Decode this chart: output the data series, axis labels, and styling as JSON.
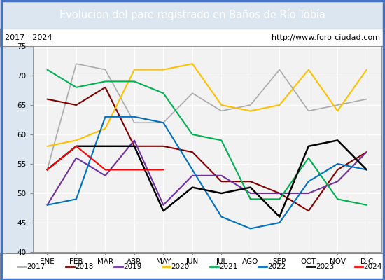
{
  "title": "Evolucion del paro registrado en Baños de Río Tobía",
  "title_bg": "#4472c4",
  "subtitle_left": "2017 - 2024",
  "subtitle_right": "http://www.foro-ciudad.com",
  "months": [
    "ENE",
    "FEB",
    "MAR",
    "ABR",
    "MAY",
    "JUN",
    "JUL",
    "AGO",
    "SEP",
    "OCT",
    "NOV",
    "DIC"
  ],
  "ylim": [
    40,
    75
  ],
  "yticks": [
    40,
    45,
    50,
    55,
    60,
    65,
    70,
    75
  ],
  "series": {
    "2017": {
      "color": "#aaaaaa",
      "linewidth": 1.2,
      "data": [
        54,
        72,
        71,
        62,
        62,
        67,
        64,
        65,
        71,
        64,
        65,
        66
      ]
    },
    "2018": {
      "color": "#800000",
      "linewidth": 1.5,
      "data": [
        66,
        65,
        68,
        58,
        58,
        57,
        52,
        52,
        50,
        47,
        54,
        57
      ]
    },
    "2019": {
      "color": "#7030a0",
      "linewidth": 1.5,
      "data": [
        48,
        56,
        53,
        59,
        48,
        53,
        53,
        50,
        50,
        50,
        52,
        57
      ]
    },
    "2020": {
      "color": "#ffc000",
      "linewidth": 1.5,
      "data": [
        58,
        59,
        61,
        71,
        71,
        72,
        65,
        64,
        65,
        71,
        64,
        71
      ]
    },
    "2021": {
      "color": "#00b050",
      "linewidth": 1.5,
      "data": [
        71,
        68,
        69,
        69,
        67,
        60,
        59,
        49,
        49,
        56,
        49,
        48
      ]
    },
    "2022": {
      "color": "#0070c0",
      "linewidth": 1.5,
      "data": [
        48,
        49,
        63,
        63,
        62,
        54,
        46,
        44,
        45,
        52,
        55,
        54
      ]
    },
    "2023": {
      "color": "#000000",
      "linewidth": 1.8,
      "data": [
        54,
        58,
        58,
        58,
        47,
        51,
        50,
        51,
        46,
        58,
        59,
        54
      ]
    },
    "2024": {
      "color": "#ff0000",
      "linewidth": 1.5,
      "data": [
        54,
        58,
        54,
        54,
        54,
        null,
        null,
        null,
        null,
        null,
        null,
        null
      ]
    }
  },
  "legend_order": [
    "2017",
    "2018",
    "2019",
    "2020",
    "2021",
    "2022",
    "2023",
    "2024"
  ],
  "fig_bg": "#dce6f1",
  "plot_bg": "#f2f2f2",
  "grid_color": "#d0d0d0",
  "border_color": "#4472c4"
}
